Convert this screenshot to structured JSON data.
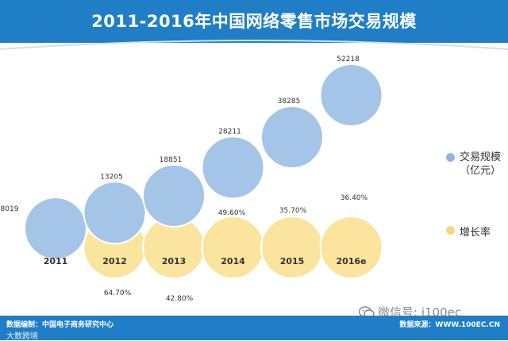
{
  "title": "2011-2016年中国网络零售市场交易规模",
  "legend": {
    "volume": {
      "line1": "交易规模",
      "line2": "（亿元）"
    },
    "growth": {
      "label": "增长率"
    }
  },
  "footer": {
    "left": "数据编制：中国电子商务研究中心",
    "right": "数据来源：WWW.100EC.CN",
    "sub": "大数跨境"
  },
  "watermark": {
    "text": "微信号: i100ec",
    "icon": "wechat-icon"
  },
  "colors": {
    "header": "#1f7ec6",
    "volume": "#a4c5e7",
    "growth": "#fbe49e",
    "text": "#333333"
  },
  "chart_data": {
    "type": "bubble",
    "categories": [
      "2011",
      "2012",
      "2013",
      "2014",
      "2015",
      "2016e"
    ],
    "series": [
      {
        "name": "交易规模（亿元）",
        "values": [
          8019,
          13205,
          18851,
          28211,
          38285,
          52218
        ],
        "labels": [
          "8019",
          "13205",
          "18851",
          "28211",
          "38285",
          "52218"
        ]
      },
      {
        "name": "增长率",
        "values": [
          null,
          64.7,
          42.8,
          49.6,
          35.7,
          36.4
        ],
        "labels": [
          "",
          "64.70%",
          "42.80%",
          "49.60%",
          "35.70%",
          "36.40%"
        ]
      }
    ]
  }
}
